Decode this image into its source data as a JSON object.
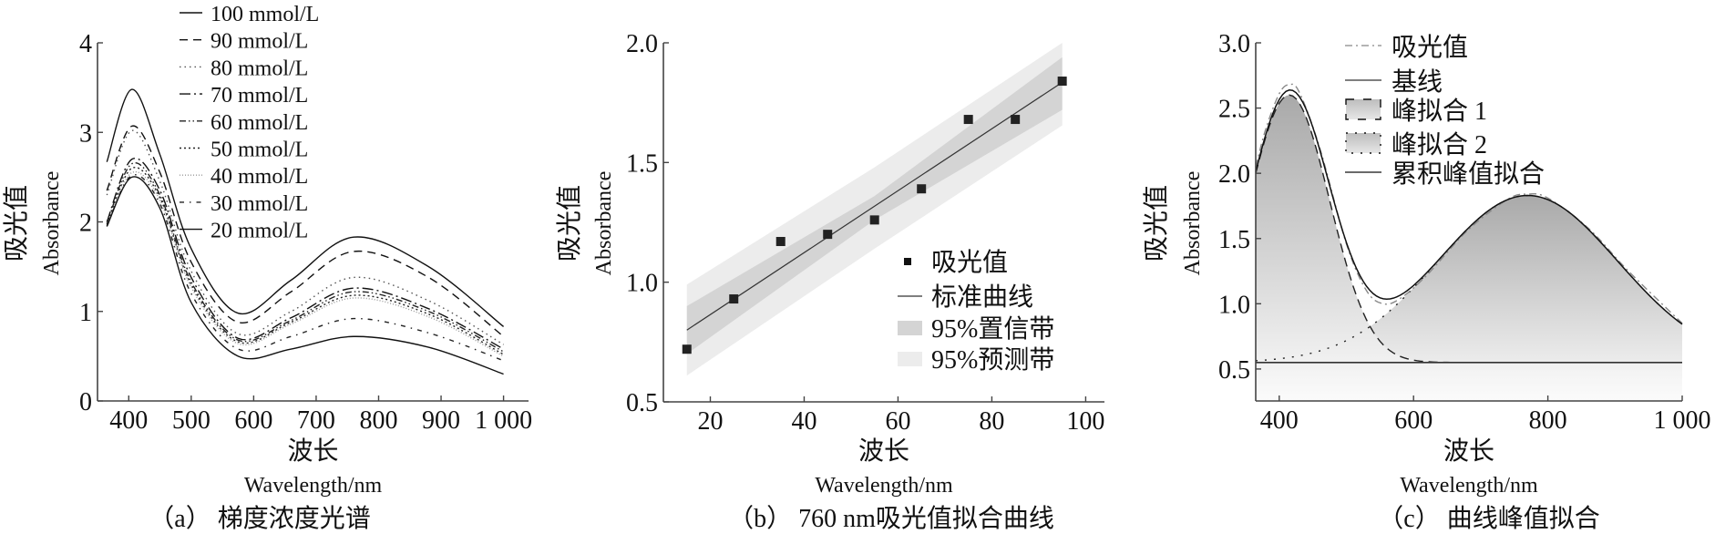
{
  "chart_data": [
    {
      "type": "line",
      "caption": "（a） 梯度浓度光谱",
      "xlabel_cn": "波长",
      "xlabel": "Wavelength/nm",
      "ylabel_cn": "吸光值",
      "ylabel": "Absorbance",
      "xlim": [
        350,
        1040
      ],
      "ylim": [
        0,
        4
      ],
      "xticks": [
        400,
        500,
        600,
        700,
        800,
        900,
        1000
      ],
      "xtick_labels": [
        "400",
        "500",
        "600",
        "700",
        "800",
        "900",
        "1 000"
      ],
      "yticks": [
        0,
        1,
        2,
        3,
        4
      ],
      "ytick_labels": [
        "0",
        "1",
        "2",
        "3",
        "4"
      ],
      "grid": false,
      "legend_position": "top",
      "x": [
        365,
        405,
        450,
        500,
        575,
        660,
        760,
        880,
        1000
      ],
      "series": [
        {
          "name": "100 mmol/L",
          "values": [
            2.67,
            3.48,
            2.75,
            1.7,
            0.98,
            1.35,
            1.83,
            1.5,
            0.83
          ]
        },
        {
          "name": "90 mmol/L",
          "values": [
            2.35,
            3.07,
            2.55,
            1.55,
            0.88,
            1.22,
            1.67,
            1.38,
            0.72
          ]
        },
        {
          "name": "80 mmol/L",
          "values": [
            2.3,
            3.02,
            2.45,
            1.45,
            0.75,
            1.0,
            1.38,
            1.12,
            0.63
          ]
        },
        {
          "name": "70 mmol/L",
          "values": [
            2.0,
            2.7,
            2.35,
            1.38,
            0.7,
            0.93,
            1.26,
            1.03,
            0.58
          ]
        },
        {
          "name": "60 mmol/L",
          "values": [
            1.98,
            2.65,
            2.3,
            1.33,
            0.68,
            0.9,
            1.22,
            1.0,
            0.55
          ]
        },
        {
          "name": "50 mmol/L",
          "values": [
            1.97,
            2.6,
            2.27,
            1.3,
            0.66,
            0.88,
            1.18,
            0.97,
            0.52
          ]
        },
        {
          "name": "40 mmol/L",
          "values": [
            1.96,
            2.55,
            2.24,
            1.27,
            0.64,
            0.86,
            1.15,
            0.94,
            0.5
          ]
        },
        {
          "name": "30 mmol/L",
          "values": [
            1.95,
            2.52,
            2.2,
            1.2,
            0.58,
            0.72,
            0.92,
            0.76,
            0.45
          ]
        },
        {
          "name": "20 mmol/L",
          "values": [
            1.95,
            2.5,
            2.15,
            1.1,
            0.5,
            0.58,
            0.72,
            0.6,
            0.3
          ]
        }
      ]
    },
    {
      "type": "scatter",
      "caption": "（b） 760 nm吸光值拟合曲线",
      "xlabel_cn": "波长",
      "xlabel": "Wavelength/nm",
      "ylabel_cn": "吸光值",
      "ylabel": "Absorbance",
      "xlim": [
        10,
        104
      ],
      "ylim": [
        0.5,
        2.0
      ],
      "xticks": [
        20,
        40,
        60,
        80,
        100
      ],
      "xtick_labels": [
        "20",
        "40",
        "60",
        "80",
        "100"
      ],
      "yticks": [
        0.5,
        1.0,
        1.5,
        2.0
      ],
      "ytick_labels": [
        "0.5",
        "1.0",
        "1.5",
        "2.0"
      ],
      "grid": false,
      "legend_position": "right",
      "points": {
        "name": "吸光值",
        "x": [
          15,
          25,
          35,
          45,
          55,
          65,
          75,
          85,
          95
        ],
        "y": [
          0.72,
          0.93,
          1.17,
          1.2,
          1.26,
          1.39,
          1.68,
          1.68,
          1.84
        ]
      },
      "fit_line": {
        "name": "标准曲线",
        "x": [
          15,
          95
        ],
        "y": [
          0.8,
          1.835
        ]
      },
      "confidence_band": {
        "name": "95%置信带",
        "x": [
          15,
          55,
          95
        ],
        "lower": [
          0.7,
          1.26,
          1.72
        ],
        "upper": [
          0.9,
          1.36,
          1.94
        ]
      },
      "prediction_band": {
        "name": "95%预测带",
        "x": [
          15,
          55,
          95
        ],
        "lower": [
          0.61,
          1.14,
          1.655
        ],
        "upper": [
          0.99,
          1.48,
          2.0
        ]
      },
      "colors": {
        "confidence": "#d4d4d4",
        "prediction": "#ececec",
        "points": "#222222"
      }
    },
    {
      "type": "area",
      "caption": "（c） 曲线峰值拟合",
      "xlabel_cn": "波长",
      "xlabel": "Wavelength/nm",
      "ylabel_cn": "吸光值",
      "ylabel": "Absorbance",
      "xlim": [
        365,
        1000
      ],
      "ylim": [
        0.255,
        3.0
      ],
      "xticks": [
        400,
        600,
        800,
        1000
      ],
      "xtick_labels": [
        "400",
        "600",
        "800",
        "1 000"
      ],
      "yticks": [
        0.5,
        1.0,
        1.5,
        2.0,
        2.5,
        3.0
      ],
      "ytick_labels": [
        "0.5",
        "1.0",
        "1.5",
        "2.0",
        "2.5",
        "3.0"
      ],
      "grid": false,
      "legend_position": "top-right",
      "legend": [
        "吸光值",
        "基线",
        "峰拟合 1",
        "峰拟合 2",
        "累积峰值拟合"
      ],
      "absorbance": {
        "x": [
          365,
          380,
          400,
          415,
          430,
          460,
          500,
          530,
          555,
          580,
          620,
          680,
          740,
          770,
          800,
          860,
          920,
          1000
        ],
        "y": [
          2.05,
          2.34,
          2.61,
          2.68,
          2.62,
          2.2,
          1.46,
          1.1,
          1.0,
          1.04,
          1.22,
          1.56,
          1.8,
          1.84,
          1.81,
          1.58,
          1.25,
          0.85
        ]
      },
      "baseline": 0.55,
      "peaks": [
        {
          "name": "峰拟合 1",
          "center": 415,
          "amplitude": 2.05,
          "sigma": 60
        },
        {
          "name": "峰拟合 2",
          "center": 770,
          "amplitude": 1.28,
          "sigma": 134
        }
      ],
      "cumulative_name": "累积峰值拟合"
    }
  ]
}
